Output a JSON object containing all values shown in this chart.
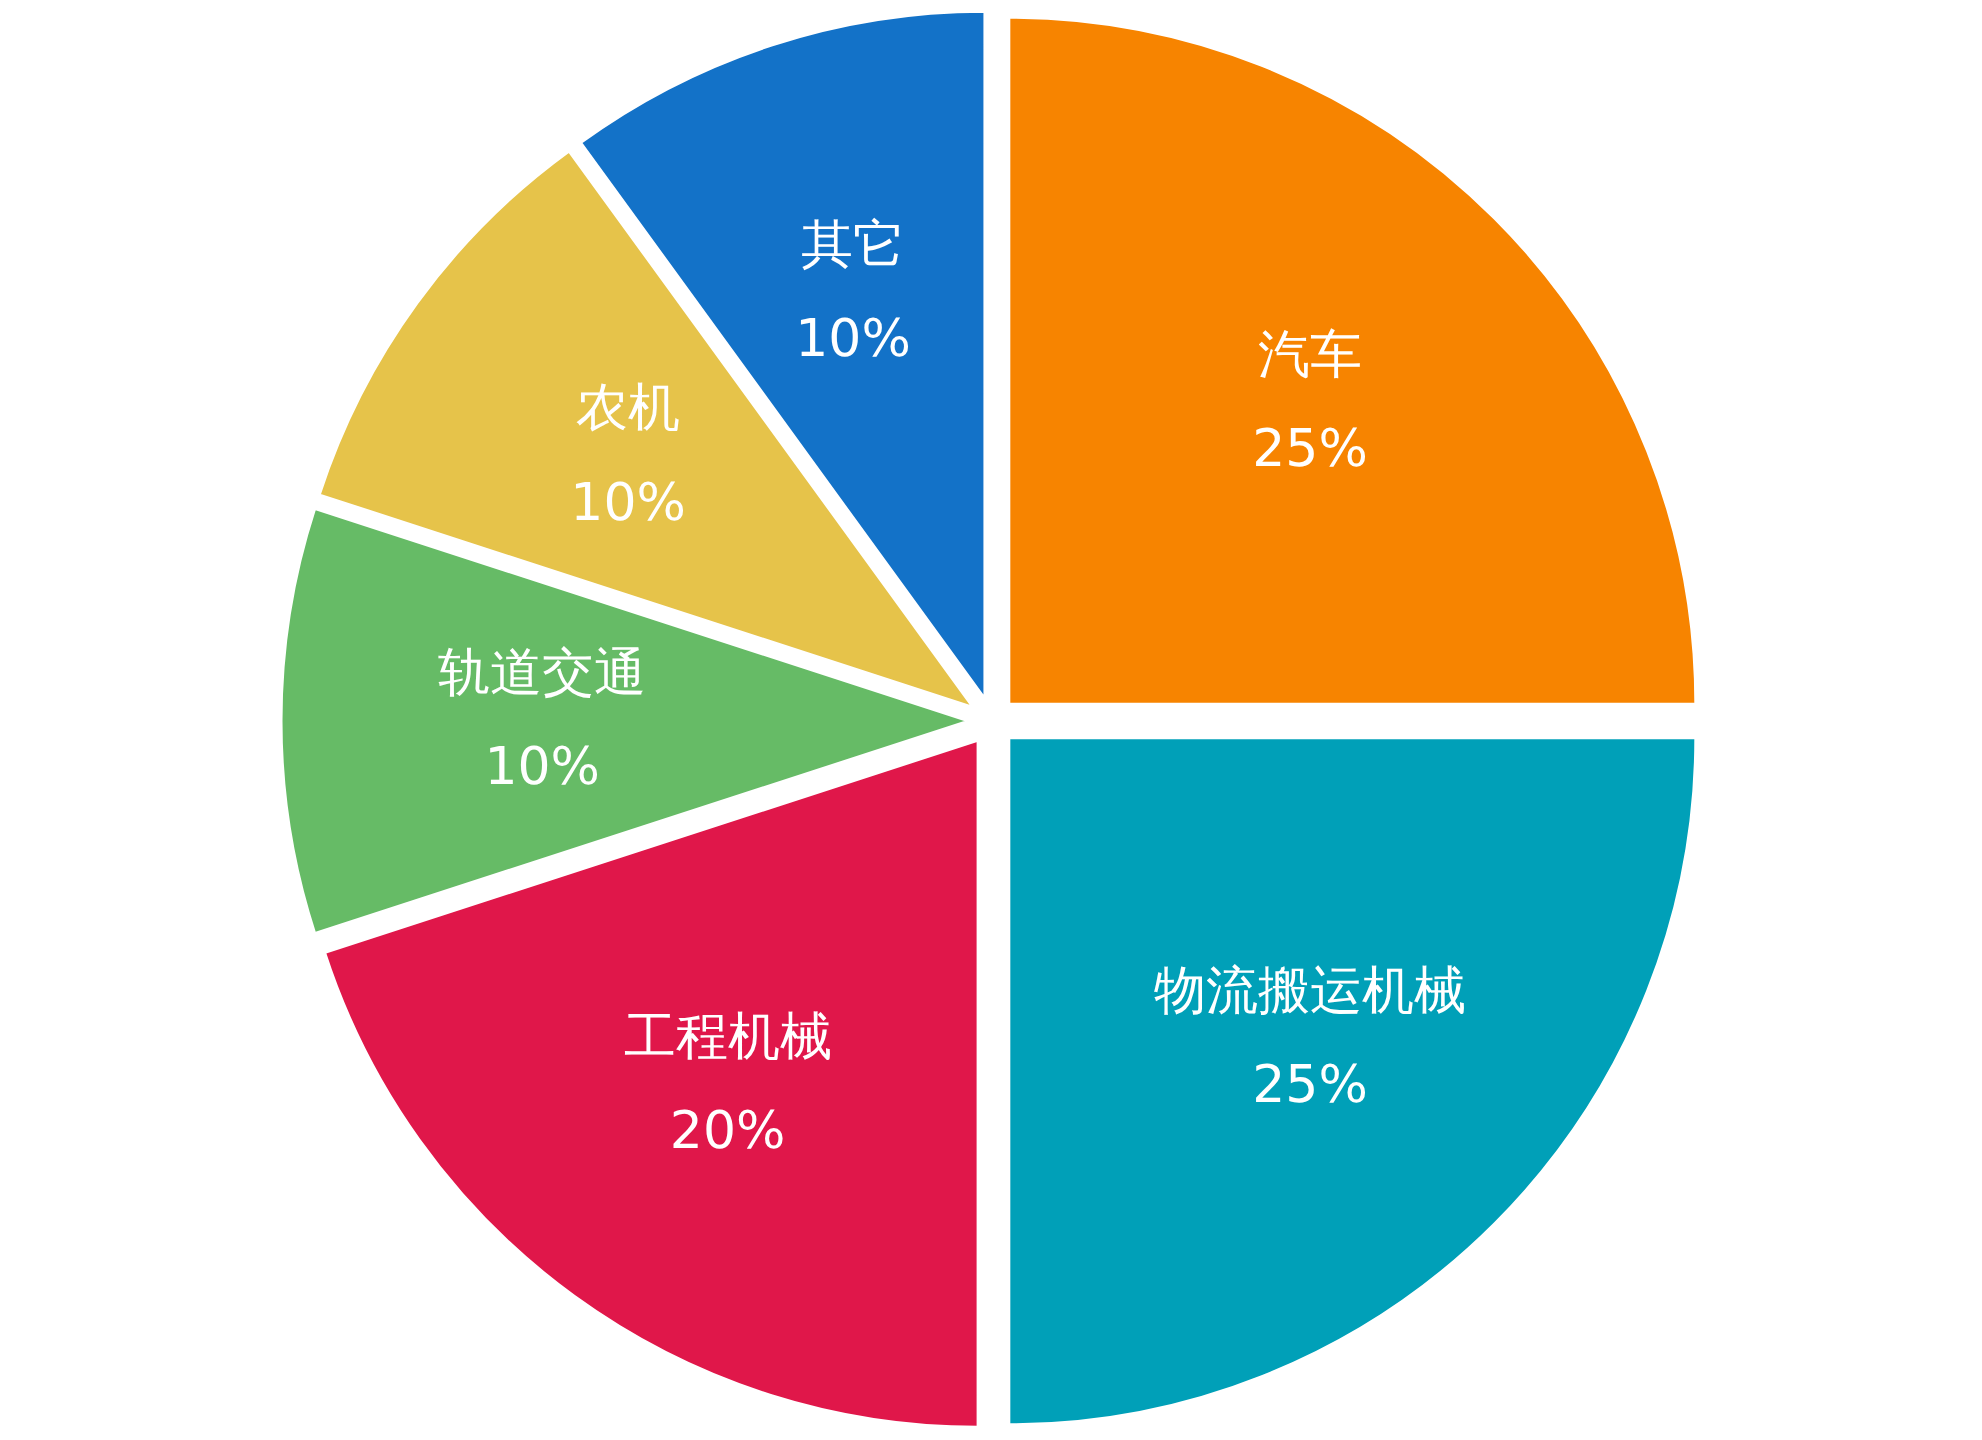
{
  "chart_data": {
    "type": "pie",
    "categories": [
      "汽车",
      "物流搬运机械",
      "工程机械",
      "轨道交通",
      "农机",
      "其它"
    ],
    "values": [
      25,
      25,
      20,
      10,
      10,
      10
    ],
    "value_labels": [
      "25%",
      "25%",
      "20%",
      "10%",
      "10%",
      "10%"
    ],
    "colors": [
      "#f78400",
      "#00a0b8",
      "#e0174a",
      "#66bb66",
      "#e6c34a",
      "#1372c8"
    ]
  }
}
